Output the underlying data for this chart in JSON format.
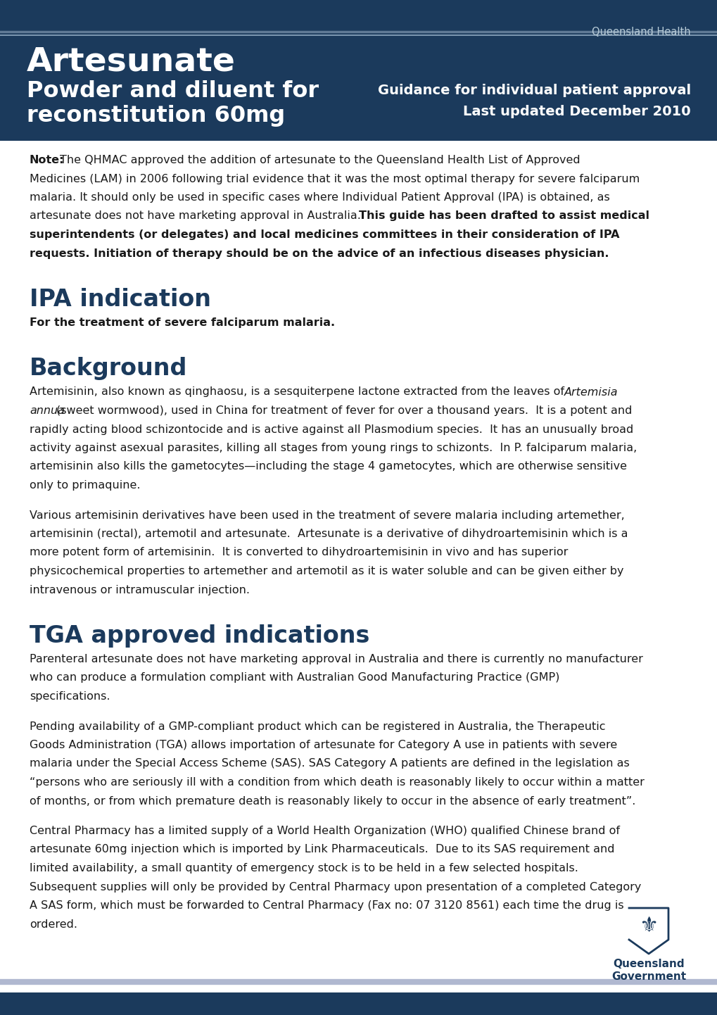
{
  "header_bg": "#1b3a5c",
  "header_stripe_color1": "#5a7a9c",
  "header_stripe_color2": "#8aaabf",
  "header_title_line1": "Artesunate",
  "header_title_line2": "Powder and diluent for",
  "header_title_line3": "reconstitution 60mg",
  "header_right_line1": "Guidance for individual patient approval",
  "header_right_line2": "Last updated December 2010",
  "qh_label": "Queensland Health",
  "body_bg": "#ffffff",
  "heading_color": "#1b3a5c",
  "text_color": "#1a1a1a",
  "footer_stripe_color": "#b0b8d0",
  "footer_bg": "#1b3a5c",
  "section1_title": "IPA indication",
  "section1_body": "For the treatment of severe falciparum malaria.",
  "section2_title": "Background",
  "section3_title": "TGA approved indications"
}
